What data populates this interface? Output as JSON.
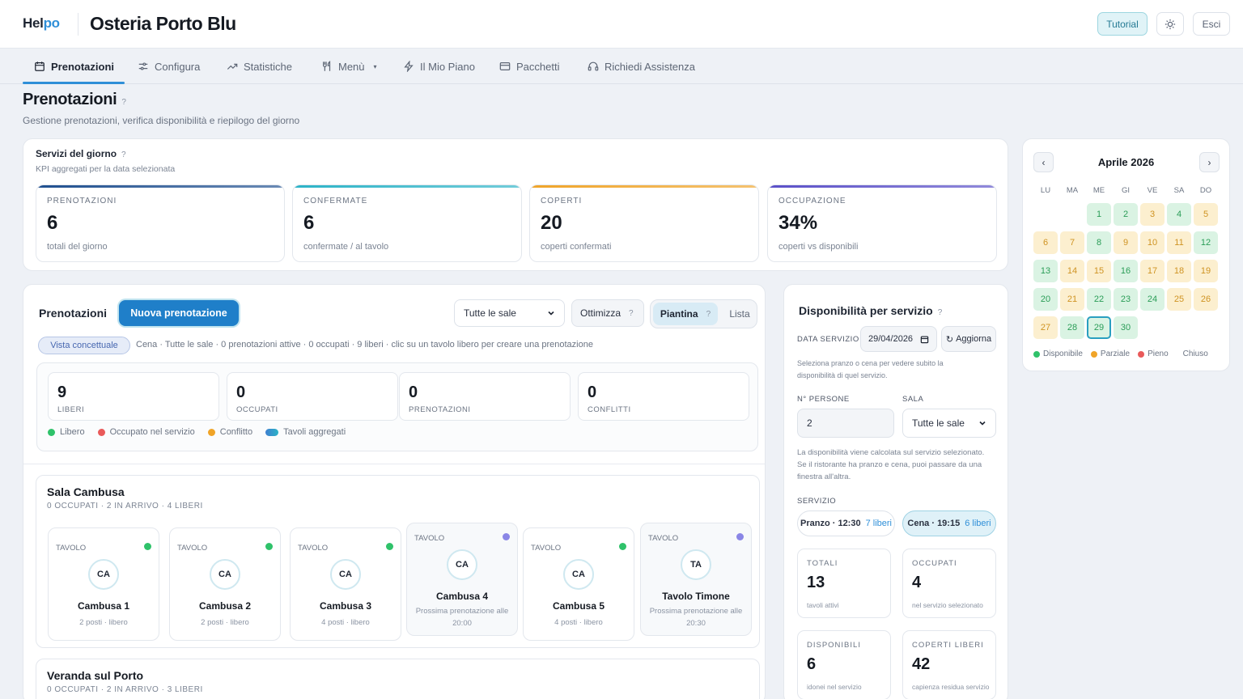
{
  "header": {
    "logo_a": "Hel",
    "logo_b": "po",
    "restaurant": "Osteria Porto Blu",
    "tutorial": "Tutorial",
    "logout": "Esci"
  },
  "nav": [
    {
      "label": "Prenotazioni",
      "icon": "calendar-icon"
    },
    {
      "label": "Configura",
      "icon": "sliders-icon"
    },
    {
      "label": "Statistiche",
      "icon": "trend-icon"
    },
    {
      "label": "Menù",
      "icon": "utensils-icon"
    },
    {
      "label": "Il Mio Piano",
      "icon": "bolt-icon"
    },
    {
      "label": "Pacchetti",
      "icon": "card-icon"
    },
    {
      "label": "Richiedi Assistenza",
      "icon": "headset-icon"
    }
  ],
  "page": {
    "title": "Prenotazioni",
    "help": "?",
    "subtitle": "Gestione prenotazioni, verifica disponibilità e riepilogo del giorno"
  },
  "kpi_section": {
    "title": "Servizi del giorno",
    "help": "?",
    "subtitle": "KPI aggregati per la data selezionata",
    "items": [
      {
        "label": "PRENOTAZIONI",
        "value": "6",
        "sub": "totali del giorno",
        "color": "#1f4f8f"
      },
      {
        "label": "CONFERMATE",
        "value": "6",
        "sub": "confermate / al tavolo",
        "color": "#2bb3c7"
      },
      {
        "label": "COPERTI",
        "value": "20",
        "sub": "coperti confermati",
        "color": "#f0a428"
      },
      {
        "label": "OCCUPAZIONE",
        "value": "34%",
        "sub": "coperti vs disponibili",
        "color": "#5a4fc8"
      }
    ]
  },
  "reservations": {
    "title": "Prenotazioni",
    "new_button": "Nuova prenotazione",
    "room_select": "Tutte le sale",
    "optimize": "Ottimizza",
    "optimize_help": "?",
    "view_map": "Piantina",
    "view_map_help": "?",
    "view_list": "Lista",
    "view_chip": "Vista concettuale",
    "view_info": "Cena · Tutte le sale · 0 prenotazioni attive · 0 occupati · 9 liberi · clic su un tavolo libero per creare una prenotazione",
    "stats": [
      {
        "value": "9",
        "label": "LIBERI"
      },
      {
        "value": "0",
        "label": "OCCUPATI"
      },
      {
        "value": "0",
        "label": "PRENOTAZIONI"
      },
      {
        "value": "0",
        "label": "CONFLITTI"
      }
    ],
    "legend": [
      {
        "label": "Libero",
        "color": "#2fc26a"
      },
      {
        "label": "Occupato nel servizio",
        "color": "#e95a5a"
      },
      {
        "label": "Conflitto",
        "color": "#f0a428"
      },
      {
        "label": "Tavoli aggregati",
        "color": "#3f7fd0"
      }
    ]
  },
  "rooms": [
    {
      "name": "Sala Cambusa",
      "summary": "0 OCCUPATI · 2 IN ARRIVO · 4 LIBERI",
      "tables": [
        {
          "tag": "TAVOLO",
          "initials": "CA",
          "name": "Cambusa 1",
          "info": "2 posti · libero",
          "status_color": "#2fc26a",
          "reserved": false
        },
        {
          "tag": "TAVOLO",
          "initials": "CA",
          "name": "Cambusa 2",
          "info": "2 posti · libero",
          "status_color": "#2fc26a",
          "reserved": false
        },
        {
          "tag": "TAVOLO",
          "initials": "CA",
          "name": "Cambusa 3",
          "info": "4 posti · libero",
          "status_color": "#2fc26a",
          "reserved": false
        },
        {
          "tag": "TAVOLO",
          "initials": "CA",
          "name": "Cambusa 4",
          "info": "Prossima prenotazione alle 20:00",
          "status_color": "#8a86e6",
          "reserved": true
        },
        {
          "tag": "TAVOLO",
          "initials": "CA",
          "name": "Cambusa 5",
          "info": "4 posti · libero",
          "status_color": "#2fc26a",
          "reserved": false
        },
        {
          "tag": "TAVOLO",
          "initials": "TA",
          "name": "Tavolo Timone",
          "info": "Prossima prenotazione alle 20:30",
          "status_color": "#8a86e6",
          "reserved": true
        }
      ]
    },
    {
      "name": "Veranda sul Porto",
      "summary": "0 OCCUPATI · 2 IN ARRIVO · 3 LIBERI",
      "tables": []
    }
  ],
  "availability": {
    "title": "Disponibilità per servizio",
    "help": "?",
    "date_label": "DATA SERVIZIO",
    "date_value": "29/04/2026",
    "refresh": "Aggiorna",
    "hint1": "Seleziona pranzo o cena per vedere subito la disponibilità di quel servizio.",
    "persons_label": "N° PERSONE",
    "persons_value": "2",
    "room_label": "SALA",
    "room_value": "Tutte le sale",
    "hint2": "La disponibilità viene calcolata sul servizio selezionato. Se il ristorante ha pranzo e cena, puoi passare da una finestra all'altra.",
    "service_label": "SERVIZIO",
    "services": [
      {
        "label": "Pranzo · 12:30",
        "free": "7 liberi",
        "active": false
      },
      {
        "label": "Cena · 19:15",
        "free": "6 liberi",
        "active": true
      }
    ],
    "stats": [
      {
        "label": "TOTALI",
        "value": "13",
        "sub": "tavoli attivi"
      },
      {
        "label": "OCCUPATI",
        "value": "4",
        "sub": "nel servizio selezionato"
      },
      {
        "label": "DISPONIBILI",
        "value": "6",
        "sub": "idonei nel servizio"
      },
      {
        "label": "COPERTI LIBERI",
        "value": "42",
        "sub": "capienza residua servizio"
      }
    ]
  },
  "calendar": {
    "title": "Aprile 2026",
    "prev": "‹",
    "next": "›",
    "weekdays": [
      "LU",
      "MA",
      "ME",
      "GI",
      "VE",
      "SA",
      "DO"
    ],
    "first_weekday_index": 2,
    "selected_day": "29",
    "days": [
      {
        "d": "1",
        "s": "g"
      },
      {
        "d": "2",
        "s": "g"
      },
      {
        "d": "3",
        "s": "o"
      },
      {
        "d": "4",
        "s": "g"
      },
      {
        "d": "5",
        "s": "o"
      },
      {
        "d": "6",
        "s": "o"
      },
      {
        "d": "7",
        "s": "o"
      },
      {
        "d": "8",
        "s": "g"
      },
      {
        "d": "9",
        "s": "o"
      },
      {
        "d": "10",
        "s": "o"
      },
      {
        "d": "11",
        "s": "o"
      },
      {
        "d": "12",
        "s": "g"
      },
      {
        "d": "13",
        "s": "g"
      },
      {
        "d": "14",
        "s": "o"
      },
      {
        "d": "15",
        "s": "o"
      },
      {
        "d": "16",
        "s": "g"
      },
      {
        "d": "17",
        "s": "o"
      },
      {
        "d": "18",
        "s": "o"
      },
      {
        "d": "19",
        "s": "o"
      },
      {
        "d": "20",
        "s": "g"
      },
      {
        "d": "21",
        "s": "o"
      },
      {
        "d": "22",
        "s": "g"
      },
      {
        "d": "23",
        "s": "g"
      },
      {
        "d": "24",
        "s": "g"
      },
      {
        "d": "25",
        "s": "o"
      },
      {
        "d": "26",
        "s": "o"
      },
      {
        "d": "27",
        "s": "o"
      },
      {
        "d": "28",
        "s": "g"
      },
      {
        "d": "29",
        "s": "g"
      },
      {
        "d": "30",
        "s": "g"
      }
    ],
    "legend": [
      {
        "label": "Disponibile",
        "color": "#2fc26a"
      },
      {
        "label": "Parziale",
        "color": "#f0a428"
      },
      {
        "label": "Pieno",
        "color": "#e95a5a"
      },
      {
        "label": "Chiuso",
        "color": ""
      }
    ]
  }
}
